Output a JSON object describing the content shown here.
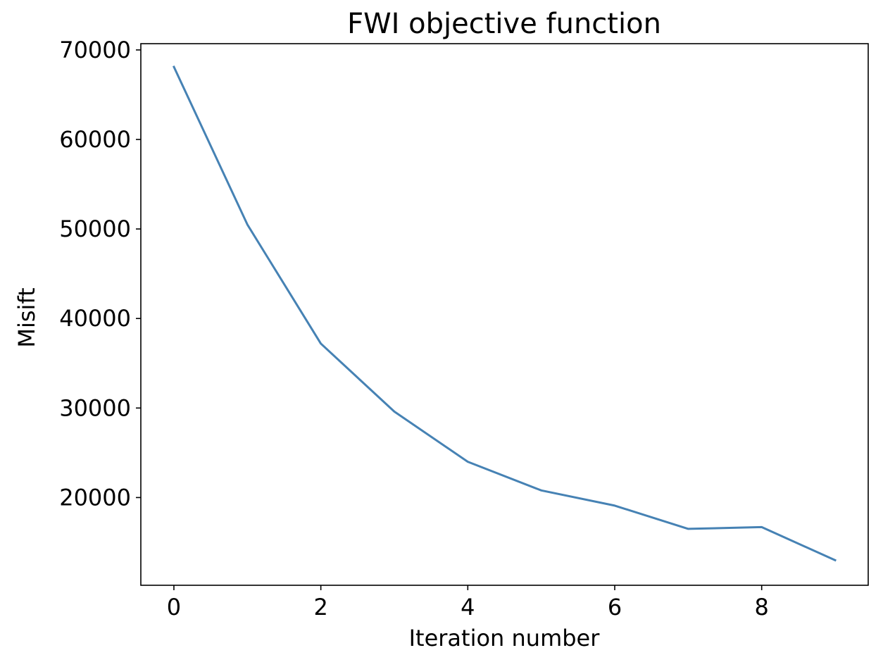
{
  "chart_data": {
    "type": "line",
    "title": "FWI objective function",
    "xlabel": "Iteration number",
    "ylabel": "Misift",
    "x": [
      0,
      1,
      2,
      3,
      4,
      5,
      6,
      7,
      8,
      9
    ],
    "series": [
      {
        "values": [
          68100,
          50500,
          37200,
          29600,
          24000,
          20800,
          19100,
          16500,
          16700,
          13000
        ],
        "color": "#4682b4"
      }
    ],
    "xlim": [
      -0.45,
      9.45
    ],
    "ylim": [
      10200,
      70700
    ],
    "xticks": [
      0,
      2,
      4,
      6,
      8
    ],
    "xtick_labels": [
      "0",
      "2",
      "4",
      "6",
      "8"
    ],
    "yticks": [
      20000,
      30000,
      40000,
      50000,
      60000,
      70000
    ],
    "ytick_labels": [
      "20000",
      "30000",
      "40000",
      "50000",
      "60000",
      "70000"
    ],
    "grid": false,
    "legend": "none"
  }
}
